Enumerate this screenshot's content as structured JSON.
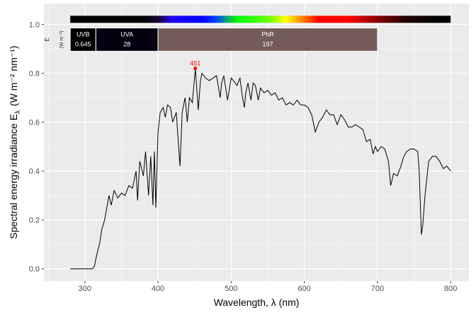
{
  "chart_data": {
    "type": "line",
    "xlabel": "Wavelength, λ (nm)",
    "ylabel": "Spectral  energy  irradiance  E",
    "ylabel_sub": "λ",
    "ylabel_unit": "(W m⁻² nm⁻¹)",
    "xlim": [
      244,
      825
    ],
    "ylim": [
      -0.05,
      1.085
    ],
    "xticks": [
      300,
      400,
      500,
      600,
      700,
      800
    ],
    "yticks": [
      0.0,
      0.2,
      0.4,
      0.6,
      0.8,
      1.0
    ],
    "ytick_labels": [
      "0.0",
      "0.2",
      "0.4",
      "0.6",
      "0.8",
      "1.0"
    ],
    "grid": true,
    "line_color": "#000000",
    "peak": {
      "x": 451,
      "y": 0.82,
      "label": "451",
      "color": "#ff0000"
    },
    "waveband_axis_label": "E",
    "waveband_axis_unit": "(W m⁻²)",
    "wavebands": [
      {
        "name": "UVB",
        "value": "0.645",
        "from": 280,
        "to": 315,
        "color": "#000000"
      },
      {
        "name": "UVA",
        "value": "28",
        "from": 315,
        "to": 400,
        "color": "#050010"
      },
      {
        "name": "PhR",
        "value": "197",
        "from": 400,
        "to": 700,
        "color": "#735c57"
      }
    ],
    "color_bar_range": [
      280,
      800
    ],
    "x": [
      280,
      310,
      313,
      315,
      318,
      320,
      323,
      327,
      330,
      333,
      336,
      340,
      345,
      350,
      355,
      360,
      365,
      370,
      372,
      375,
      380,
      383,
      387,
      390,
      393,
      395,
      397,
      400,
      403,
      407,
      410,
      413,
      417,
      420,
      425,
      430,
      433,
      437,
      440,
      443,
      447,
      451,
      455,
      458,
      460,
      465,
      470,
      475,
      480,
      485,
      487,
      490,
      495,
      500,
      503,
      508,
      512,
      515,
      518,
      520,
      523,
      527,
      530,
      533,
      537,
      540,
      545,
      550,
      555,
      560,
      565,
      570,
      575,
      580,
      585,
      590,
      595,
      600,
      605,
      610,
      615,
      620,
      625,
      630,
      635,
      640,
      645,
      650,
      655,
      660,
      665,
      670,
      675,
      680,
      685,
      690,
      694,
      697,
      700,
      705,
      710,
      715,
      718,
      722,
      727,
      732,
      736,
      740,
      745,
      750,
      755,
      757,
      760,
      762,
      765,
      770,
      775,
      780,
      785,
      790,
      795,
      800
    ],
    "y": [
      0,
      0,
      0.01,
      0.04,
      0.08,
      0.1,
      0.16,
      0.2,
      0.25,
      0.3,
      0.26,
      0.32,
      0.29,
      0.31,
      0.3,
      0.34,
      0.33,
      0.4,
      0.28,
      0.44,
      0.38,
      0.48,
      0.3,
      0.46,
      0.26,
      0.48,
      0.25,
      0.56,
      0.64,
      0.66,
      0.62,
      0.67,
      0.66,
      0.6,
      0.64,
      0.42,
      0.64,
      0.7,
      0.6,
      0.7,
      0.68,
      0.82,
      0.65,
      0.77,
      0.8,
      0.78,
      0.77,
      0.78,
      0.79,
      0.7,
      0.76,
      0.79,
      0.69,
      0.78,
      0.77,
      0.75,
      0.78,
      0.71,
      0.66,
      0.72,
      0.76,
      0.69,
      0.76,
      0.75,
      0.69,
      0.74,
      0.72,
      0.73,
      0.71,
      0.72,
      0.69,
      0.7,
      0.67,
      0.68,
      0.67,
      0.69,
      0.67,
      0.67,
      0.66,
      0.63,
      0.56,
      0.6,
      0.62,
      0.65,
      0.63,
      0.63,
      0.59,
      0.63,
      0.61,
      0.58,
      0.58,
      0.59,
      0.58,
      0.57,
      0.52,
      0.53,
      0.47,
      0.5,
      0.48,
      0.5,
      0.49,
      0.44,
      0.34,
      0.39,
      0.38,
      0.42,
      0.46,
      0.48,
      0.49,
      0.49,
      0.48,
      0.4,
      0.14,
      0.18,
      0.3,
      0.44,
      0.46,
      0.46,
      0.44,
      0.41,
      0.42,
      0.4
    ]
  }
}
